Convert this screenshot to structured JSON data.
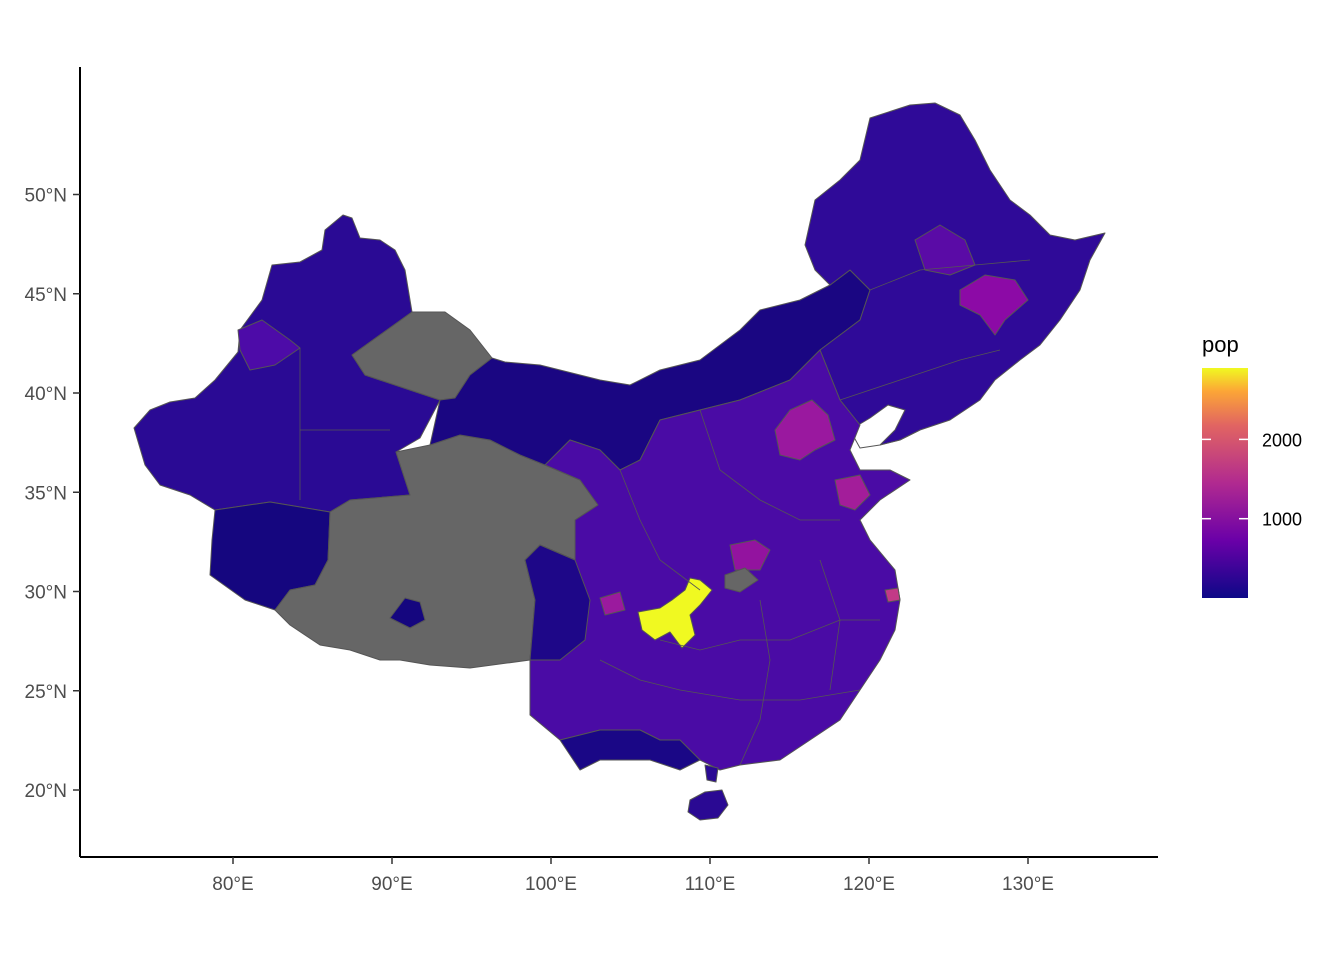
{
  "map": {
    "projection": "geographic lon/lat (plate carrée, aspect corrected)",
    "fill_variable": "pop",
    "missing_fill": "#666666",
    "border_color": "#555555",
    "x_axis": {
      "ticks": [
        {
          "value": 80,
          "label": "80°E"
        },
        {
          "value": 90,
          "label": "90°E"
        },
        {
          "value": 100,
          "label": "100°E"
        },
        {
          "value": 110,
          "label": "110°E"
        },
        {
          "value": 120,
          "label": "120°E"
        },
        {
          "value": 130,
          "label": "130°E"
        }
      ]
    },
    "y_axis": {
      "ticks": [
        {
          "value": 20,
          "label": "20°N"
        },
        {
          "value": 25,
          "label": "25°N"
        },
        {
          "value": 30,
          "label": "30°N"
        },
        {
          "value": 35,
          "label": "35°N"
        },
        {
          "value": 40,
          "label": "40°N"
        },
        {
          "value": 45,
          "label": "45°N"
        },
        {
          "value": 50,
          "label": "50°N"
        }
      ]
    },
    "legend": {
      "title": "pop",
      "palette": "plasma",
      "ticks": [
        {
          "value": 1000,
          "label": "1000"
        },
        {
          "value": 2000,
          "label": "2000"
        }
      ]
    }
  }
}
